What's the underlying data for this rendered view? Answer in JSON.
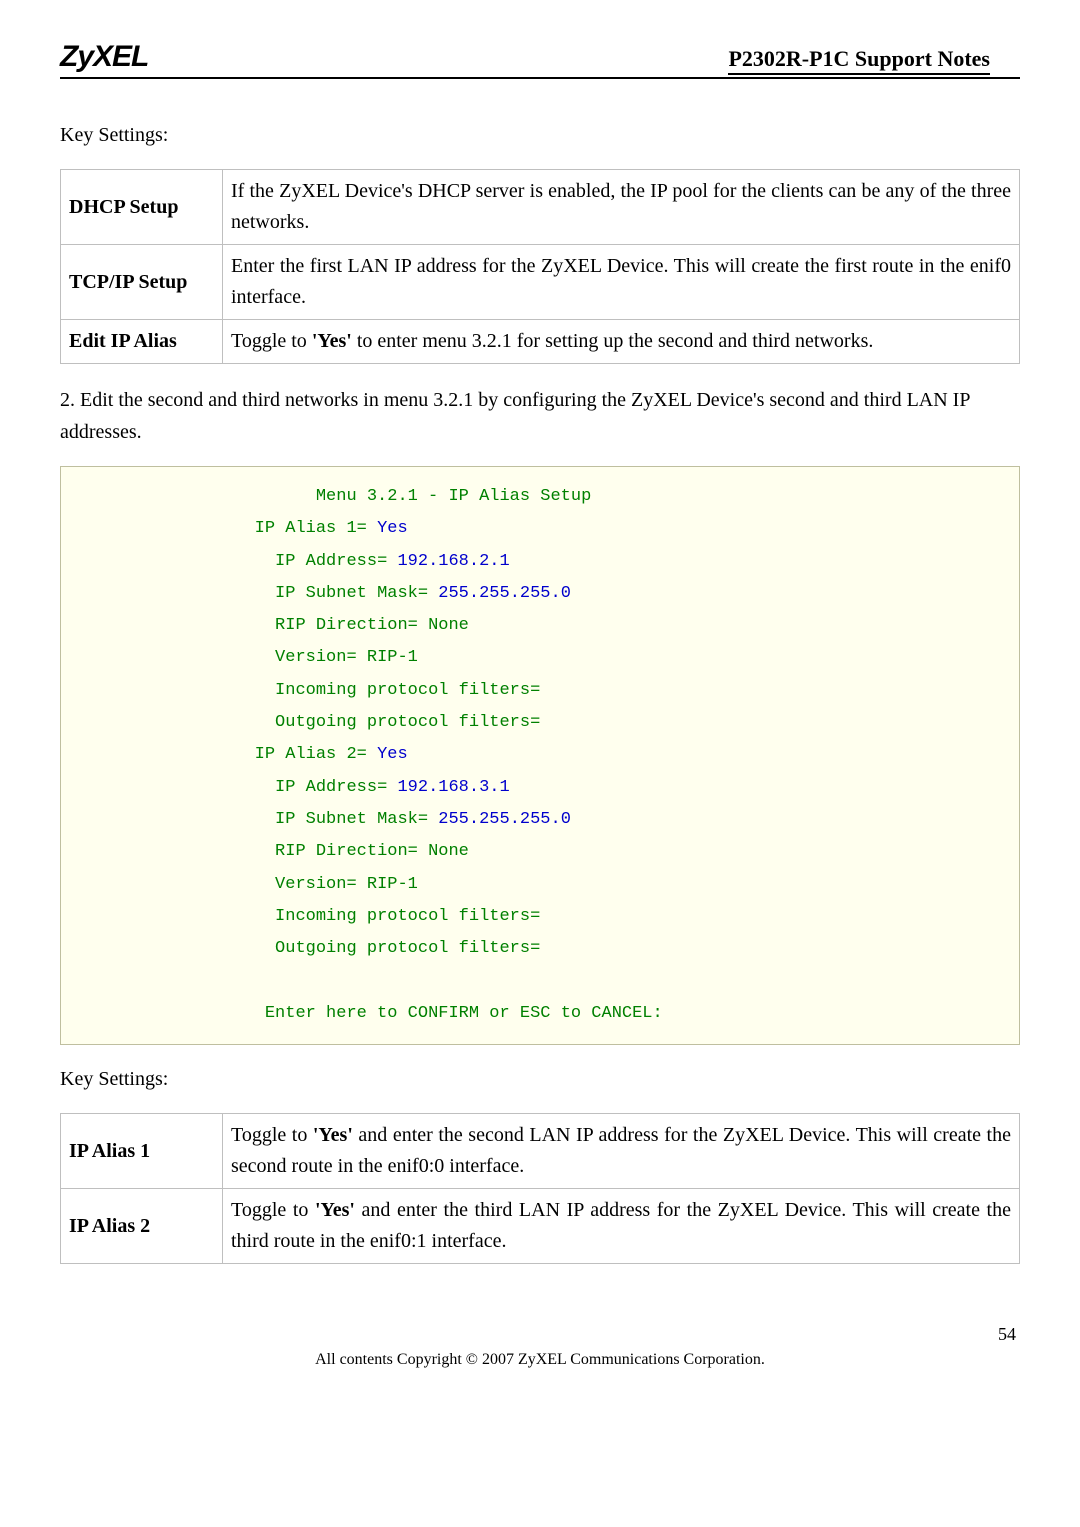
{
  "header": {
    "logo": "ZyXEL",
    "doc_title": "P2302R-P1C Support Notes"
  },
  "key_settings_label": "Key Settings:",
  "table1": {
    "rows": [
      {
        "key": "DHCP Setup",
        "val": "If the ZyXEL Device's DHCP server is enabled, the IP pool for the clients can be any of the three networks."
      },
      {
        "key": "TCP/IP Setup",
        "val": "Enter the first LAN IP address for the ZyXEL Device. This will create the first route in the enif0 interface."
      },
      {
        "key": "Edit IP Alias",
        "val_pre": "Toggle to ",
        "val_bold": "'Yes'",
        "val_post": " to enter menu 3.2.1 for setting up the second and third networks."
      }
    ]
  },
  "paragraph2": "2. Edit the second and third networks in menu 3.2.1 by configuring the ZyXEL Device's second and third LAN IP addresses.",
  "terminal": {
    "title": "Menu 3.2.1 - IP Alias Setup",
    "alias1_label": "IP Alias 1= ",
    "alias1_val": "Yes",
    "ipaddr_label": "IP Address= ",
    "alias1_ip": "192.168.2.1",
    "subnet_label": "IP Subnet Mask= ",
    "alias1_mask": "255.255.255.0",
    "rip_dir": "RIP Direction= None",
    "version": "Version= RIP-1",
    "in_filters": "Incoming protocol filters=",
    "out_filters": "Outgoing protocol filters=",
    "alias2_label": "IP Alias 2= ",
    "alias2_val": "Yes",
    "alias2_ip": "192.168.3.1",
    "alias2_mask": "255.255.255.0",
    "confirm": "Enter here to CONFIRM or ESC to CANCEL:"
  },
  "table2": {
    "rows": [
      {
        "key": "IP Alias 1",
        "val_pre": "Toggle to ",
        "val_bold": "'Yes'",
        "val_post": " and enter the second LAN IP address for the ZyXEL Device. This will create the second route in the enif0:0 interface."
      },
      {
        "key": "IP Alias 2",
        "val_pre": "Toggle to ",
        "val_bold": "'Yes'",
        "val_post": " and enter the third LAN IP address for the ZyXEL Device. This will create the third route in the enif0:1 interface."
      }
    ]
  },
  "footer": {
    "page_num": "54",
    "copyright": "All contents Copyright © 2007 ZyXEL Communications Corporation."
  }
}
